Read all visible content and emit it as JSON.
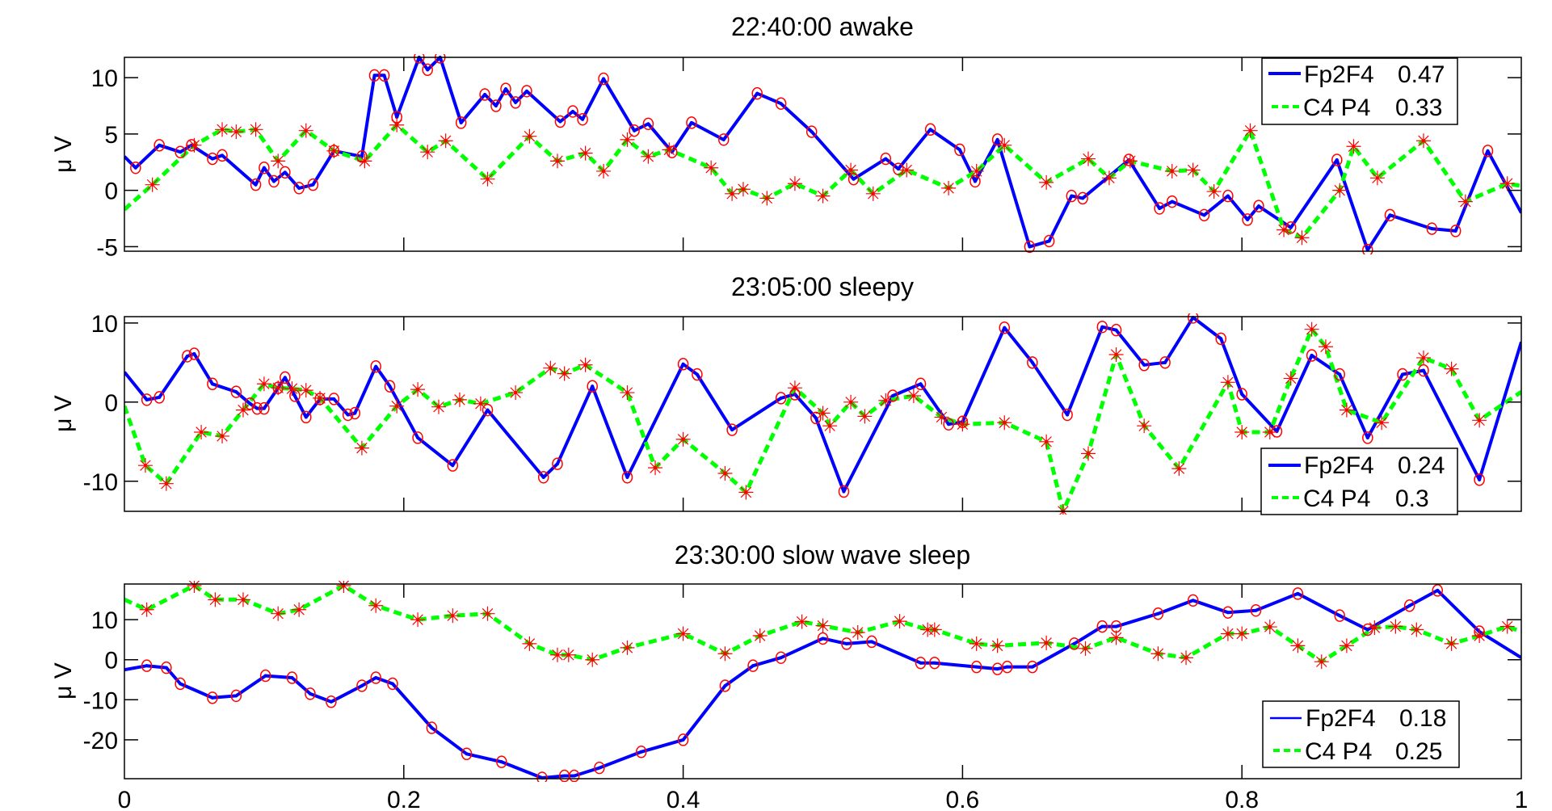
{
  "chart_data": [
    {
      "type": "line",
      "title": "22:40:00  awake",
      "xlabel": "",
      "ylabel": "μ V",
      "xlim": [
        0,
        1
      ],
      "ylim": [
        -5.4,
        11.8
      ],
      "xticks": [
        0,
        0.2,
        0.4,
        0.6,
        0.8,
        1
      ],
      "xtick_labels_visible": false,
      "yticks": [
        -5,
        0,
        5,
        10
      ],
      "ytick_labels": [
        "-5",
        "0",
        "5",
        "10"
      ],
      "grid": false,
      "legend_position": "upper right",
      "series": [
        {
          "name": "Fp2F4  0.47",
          "label": "Fp2F4",
          "value": 0.47,
          "color": "#0000ff",
          "style": "solid",
          "marker": "o",
          "x": [
            0,
            0.008,
            0.025,
            0.04,
            0.048,
            0.063,
            0.07,
            0.094,
            0.1,
            0.107,
            0.115,
            0.125,
            0.135,
            0.15,
            0.17,
            0.179,
            0.186,
            0.195,
            0.211,
            0.217,
            0.226,
            0.241,
            0.258,
            0.266,
            0.273,
            0.28,
            0.288,
            0.312,
            0.321,
            0.328,
            0.343,
            0.365,
            0.375,
            0.392,
            0.406,
            0.429,
            0.453,
            0.47,
            0.492,
            0.522,
            0.545,
            0.554,
            0.577,
            0.598,
            0.609,
            0.625,
            0.648,
            0.662,
            0.678,
            0.686,
            0.719,
            0.741,
            0.75,
            0.773,
            0.79,
            0.804,
            0.812,
            0.835,
            0.868,
            0.89,
            0.906,
            0.936,
            0.953,
            0.976,
            1
          ],
          "values": [
            3,
            2,
            4,
            3.4,
            4,
            2.8,
            3.1,
            0.5,
            2,
            0.8,
            1.6,
            0.2,
            0.5,
            3.5,
            3,
            10.2,
            10.2,
            6.5,
            11.8,
            10.7,
            11.8,
            6,
            8.5,
            7.5,
            9,
            7.8,
            8.8,
            6.1,
            7,
            6.3,
            9.9,
            5.3,
            5.9,
            3.4,
            6,
            4.5,
            8.6,
            7.7,
            5.2,
            1,
            2.8,
            1.9,
            5.4,
            3.6,
            0.8,
            4.5,
            -5,
            -4.5,
            -0.5,
            -0.7,
            2.7,
            -1.6,
            -1,
            -2.2,
            -0.5,
            -2.6,
            -1.4,
            -3.3,
            2.7,
            -5.3,
            -2.2,
            -3.4,
            -3.6,
            3.5,
            -2
          ]
        },
        {
          "name": "C4 P4  0.33",
          "label": "C4 P4",
          "value": 0.33,
          "color": "#00ff00",
          "style": "dashed",
          "marker": "*",
          "x": [
            0,
            0.02,
            0.05,
            0.07,
            0.08,
            0.094,
            0.11,
            0.13,
            0.15,
            0.172,
            0.195,
            0.217,
            0.23,
            0.26,
            0.29,
            0.31,
            0.33,
            0.343,
            0.36,
            0.375,
            0.39,
            0.42,
            0.435,
            0.443,
            0.46,
            0.48,
            0.5,
            0.52,
            0.536,
            0.56,
            0.59,
            0.61,
            0.63,
            0.66,
            0.69,
            0.705,
            0.72,
            0.75,
            0.765,
            0.78,
            0.806,
            0.83,
            0.843,
            0.87,
            0.88,
            0.897,
            0.93,
            0.96,
            0.99,
            1
          ],
          "values": [
            -1.7,
            0.5,
            4,
            5.4,
            5.2,
            5.4,
            2.6,
            5.3,
            3.5,
            2.6,
            5.8,
            3.4,
            4.4,
            1,
            4.8,
            2.6,
            3.3,
            1.7,
            4.5,
            3,
            3.6,
            2,
            -0.3,
            0.1,
            -0.7,
            0.6,
            -0.5,
            1.8,
            -0.3,
            1.8,
            0.2,
            1.7,
            4,
            0.7,
            2.8,
            1.1,
            2.6,
            1.7,
            1.8,
            -0.1,
            5.3,
            -3.5,
            -4.2,
            0,
            3.9,
            1.1,
            4.4,
            -1,
            0.6,
            0.4
          ]
        }
      ]
    },
    {
      "type": "line",
      "title": "23:05:00  sleepy",
      "xlabel": "",
      "ylabel": "μ V",
      "xlim": [
        0,
        1
      ],
      "ylim": [
        -13.8,
        10.8
      ],
      "xticks": [
        0,
        0.2,
        0.4,
        0.6,
        0.8,
        1
      ],
      "xtick_labels_visible": false,
      "yticks": [
        -10,
        0,
        10
      ],
      "ytick_labels": [
        "-10",
        "0",
        "10"
      ],
      "grid": false,
      "legend_position": "lower right",
      "series": [
        {
          "name": "Fp2F4  0.24",
          "label": "Fp2F4",
          "value": 0.24,
          "color": "#0000ff",
          "style": "solid",
          "marker": "o",
          "x": [
            0,
            0.016,
            0.025,
            0.045,
            0.05,
            0.063,
            0.08,
            0.09,
            0.095,
            0.1,
            0.11,
            0.115,
            0.122,
            0.13,
            0.14,
            0.15,
            0.16,
            0.165,
            0.18,
            0.19,
            0.21,
            0.235,
            0.26,
            0.3,
            0.31,
            0.335,
            0.36,
            0.4,
            0.41,
            0.435,
            0.47,
            0.48,
            0.495,
            0.515,
            0.55,
            0.57,
            0.59,
            0.6,
            0.63,
            0.65,
            0.675,
            0.7,
            0.71,
            0.73,
            0.745,
            0.765,
            0.785,
            0.8,
            0.825,
            0.85,
            0.87,
            0.89,
            0.915,
            0.93,
            0.97,
            1
          ],
          "values": [
            3.8,
            0.3,
            0.6,
            5.8,
            6.1,
            2.3,
            1.3,
            -0.2,
            -0.8,
            -0.8,
            1.8,
            3.1,
            0.8,
            -1.9,
            0.4,
            0.4,
            -1.6,
            -1.4,
            4.5,
            2,
            -4.5,
            -8,
            -1,
            -9.5,
            -7.8,
            2,
            -9.5,
            4.8,
            3.5,
            -3.5,
            0.5,
            1,
            -2,
            -11.3,
            0.8,
            2.3,
            -2.8,
            -2.5,
            9.4,
            5,
            -1.6,
            9.5,
            9.1,
            4.7,
            5,
            10.7,
            8,
            1,
            -3.7,
            5.9,
            3.5,
            -4.5,
            3.5,
            4,
            -9.8,
            7.6
          ]
        },
        {
          "name": "C4 P4  0.3",
          "label": "C4 P4",
          "value": 0.3,
          "color": "#00ff00",
          "style": "dashed",
          "marker": "*",
          "x": [
            0,
            0.015,
            0.03,
            0.055,
            0.07,
            0.085,
            0.1,
            0.11,
            0.12,
            0.13,
            0.14,
            0.17,
            0.195,
            0.21,
            0.225,
            0.24,
            0.255,
            0.28,
            0.305,
            0.315,
            0.33,
            0.36,
            0.38,
            0.4,
            0.43,
            0.445,
            0.48,
            0.5,
            0.505,
            0.52,
            0.53,
            0.545,
            0.565,
            0.585,
            0.6,
            0.63,
            0.66,
            0.672,
            0.69,
            0.71,
            0.73,
            0.755,
            0.79,
            0.8,
            0.82,
            0.835,
            0.85,
            0.86,
            0.875,
            0.9,
            0.93,
            0.95,
            0.97,
            1
          ],
          "values": [
            -0.5,
            -8,
            -10.3,
            -3.8,
            -4.3,
            -1,
            2.3,
            1.8,
            1.7,
            1.5,
            0.5,
            -5.8,
            -0.5,
            1.6,
            -0.6,
            0.3,
            -0.2,
            1.2,
            4.3,
            3.6,
            4.7,
            1.2,
            -8.3,
            -4.7,
            -9,
            -11.4,
            1.8,
            -1.4,
            -3,
            0,
            -1.8,
            0.2,
            0.8,
            -1.9,
            -2.8,
            -2.6,
            -5,
            -13.8,
            -6.5,
            6,
            -3,
            -8.4,
            2.5,
            -3.8,
            -3.8,
            3,
            9.2,
            7,
            -1,
            -2.6,
            5.6,
            4.2,
            -2.3,
            1.3
          ]
        }
      ]
    },
    {
      "type": "line",
      "title": "23:30:00  slow wave sleep",
      "xlabel": "",
      "ylabel": "μ V",
      "xlim": [
        0,
        1
      ],
      "ylim": [
        -29.7,
        18.9
      ],
      "xticks": [
        0,
        0.2,
        0.4,
        0.6,
        0.8,
        1
      ],
      "xtick_labels": [
        "0",
        "0.2",
        "0.4",
        "0.6",
        "0.8",
        "1"
      ],
      "yticks": [
        -20,
        -10,
        0,
        10
      ],
      "ytick_labels": [
        "-20",
        "-10",
        "0",
        "10"
      ],
      "grid": false,
      "legend_position": "lower right",
      "series": [
        {
          "name": "Fp2F4  0.18",
          "label": "Fp2F4",
          "value": 0.18,
          "color": "#0000ff",
          "style": "solid",
          "marker": "o",
          "x": [
            0,
            0.016,
            0.03,
            0.04,
            0.063,
            0.08,
            0.101,
            0.12,
            0.133,
            0.148,
            0.17,
            0.18,
            0.192,
            0.22,
            0.245,
            0.27,
            0.299,
            0.315,
            0.322,
            0.34,
            0.37,
            0.4,
            0.43,
            0.45,
            0.47,
            0.5,
            0.517,
            0.535,
            0.57,
            0.58,
            0.61,
            0.625,
            0.632,
            0.65,
            0.68,
            0.7,
            0.71,
            0.74,
            0.765,
            0.79,
            0.81,
            0.84,
            0.87,
            0.89,
            0.92,
            0.94,
            0.97,
            1
          ],
          "values": [
            -2.5,
            -1.5,
            -2,
            -6,
            -9.5,
            -9,
            -4,
            -4.5,
            -8.5,
            -10.5,
            -6.5,
            -4.5,
            -6,
            -17,
            -23.5,
            -25.5,
            -29.5,
            -29,
            -29,
            -27,
            -23,
            -20,
            -6.5,
            -1.5,
            0.5,
            5.3,
            4,
            4.5,
            -0.8,
            -0.8,
            -1.8,
            -2.3,
            -1.8,
            -1.8,
            4,
            8.3,
            8.3,
            11.5,
            14.8,
            11.8,
            12.3,
            16.5,
            11,
            7.5,
            13.5,
            17.3,
            7,
            0.5
          ]
        },
        {
          "name": "C4 P4  0.25",
          "label": "C4 P4",
          "value": 0.25,
          "color": "#00ff00",
          "style": "dashed",
          "marker": "*",
          "x": [
            0,
            0.016,
            0.05,
            0.065,
            0.085,
            0.11,
            0.125,
            0.157,
            0.18,
            0.21,
            0.235,
            0.26,
            0.29,
            0.31,
            0.318,
            0.335,
            0.36,
            0.4,
            0.43,
            0.455,
            0.485,
            0.5,
            0.525,
            0.555,
            0.575,
            0.58,
            0.61,
            0.625,
            0.66,
            0.688,
            0.71,
            0.74,
            0.76,
            0.79,
            0.8,
            0.82,
            0.84,
            0.857,
            0.875,
            0.895,
            0.91,
            0.925,
            0.95,
            0.97,
            0.99,
            1
          ],
          "values": [
            15,
            12.5,
            18.5,
            15,
            15,
            11.5,
            12.5,
            18.5,
            13.5,
            10,
            11,
            11.5,
            4,
            1.2,
            1.2,
            0,
            3,
            6.5,
            1.5,
            6,
            9.5,
            8.5,
            6.8,
            9.6,
            7.5,
            7.5,
            4,
            3.5,
            4.2,
            2.8,
            5.5,
            1.5,
            0.5,
            6.5,
            6.5,
            8.2,
            3.5,
            -0.5,
            3.5,
            8,
            8.3,
            7.5,
            4,
            6,
            8.3,
            7
          ]
        }
      ]
    }
  ],
  "figure": {
    "panels": [
      {
        "title": "22:40:00  awake",
        "ylabel": "μ V",
        "legend": [
          {
            "label": "Fp2F4",
            "value": "0.47"
          },
          {
            "label": "C4 P4",
            "value": "0.33"
          }
        ]
      },
      {
        "title": "23:05:00  sleepy",
        "ylabel": "μ V",
        "legend": [
          {
            "label": "Fp2F4",
            "value": "0.24"
          },
          {
            "label": "C4 P4",
            "value": "0.3"
          }
        ]
      },
      {
        "title": "23:30:00  slow wave sleep",
        "ylabel": "μ V",
        "legend": [
          {
            "label": "Fp2F4",
            "value": "0.18"
          },
          {
            "label": "C4 P4",
            "value": "0.25"
          }
        ]
      }
    ],
    "colors": {
      "fp2f4": "#0000ff",
      "c4p4": "#00ff00",
      "markers": "#ff0000",
      "axes": "#000000",
      "background": "#ffffff"
    }
  }
}
